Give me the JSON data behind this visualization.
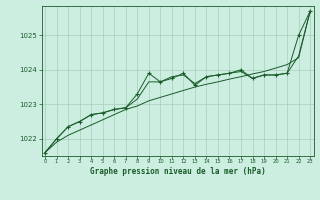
{
  "title": "Graphe pression niveau de la mer (hPa)",
  "background_color": "#cceee0",
  "grid_color": "#aaccbb",
  "line_color": "#1a5c2a",
  "marker_color": "#1a5c2a",
  "hours": [
    0,
    1,
    2,
    3,
    4,
    5,
    6,
    7,
    8,
    9,
    10,
    11,
    12,
    13,
    14,
    15,
    16,
    17,
    18,
    19,
    20,
    21,
    22,
    23
  ],
  "pressure_main": [
    1021.6,
    1022.0,
    1022.35,
    1022.5,
    1022.7,
    1022.75,
    1022.85,
    1022.9,
    1023.3,
    1023.9,
    1023.65,
    1023.75,
    1023.9,
    1023.55,
    1023.8,
    1023.85,
    1023.9,
    1024.0,
    1023.75,
    1023.85,
    1023.85,
    1023.9,
    1025.0,
    1025.7
  ],
  "pressure_line2": [
    1021.6,
    1022.0,
    1022.35,
    1022.5,
    1022.7,
    1022.75,
    1022.85,
    1022.9,
    1023.15,
    1023.65,
    1023.65,
    1023.8,
    1023.85,
    1023.6,
    1023.8,
    1023.85,
    1023.9,
    1023.95,
    1023.75,
    1023.85,
    1023.85,
    1023.9,
    1024.4,
    1025.7
  ],
  "pressure_trend": [
    1021.6,
    1021.9,
    1022.1,
    1022.25,
    1022.4,
    1022.55,
    1022.7,
    1022.85,
    1022.95,
    1023.1,
    1023.2,
    1023.3,
    1023.4,
    1023.5,
    1023.58,
    1023.65,
    1023.73,
    1023.8,
    1023.88,
    1023.95,
    1024.05,
    1024.15,
    1024.35,
    1025.7
  ],
  "ylim": [
    1021.5,
    1025.85
  ],
  "yticks": [
    1022,
    1023,
    1024,
    1025
  ],
  "xlim": [
    -0.3,
    23.3
  ],
  "xticks": [
    0,
    1,
    2,
    3,
    4,
    5,
    6,
    7,
    8,
    9,
    10,
    11,
    12,
    13,
    14,
    15,
    16,
    17,
    18,
    19,
    20,
    21,
    22,
    23
  ]
}
